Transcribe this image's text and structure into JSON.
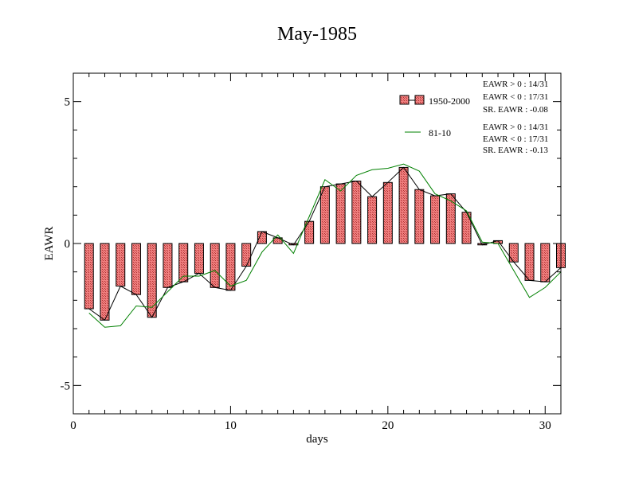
{
  "chart_data": {
    "type": "bar",
    "title": "May-1985",
    "xlabel": "days",
    "ylabel": "EAWR",
    "xlim": [
      0,
      31
    ],
    "ylim": [
      -6,
      6
    ],
    "xticks": [
      0,
      10,
      20,
      30
    ],
    "yticks": [
      -5,
      0,
      5
    ],
    "grid": false,
    "colors": {
      "bar_fill": "#f08080",
      "bar_hatch": "#b03030",
      "line_1950": "#000000",
      "line_8110": "#008000"
    },
    "x": [
      1,
      2,
      3,
      4,
      5,
      6,
      7,
      8,
      9,
      10,
      11,
      12,
      13,
      14,
      15,
      16,
      17,
      18,
      19,
      20,
      21,
      22,
      23,
      24,
      25,
      26,
      27,
      28,
      29,
      30,
      31
    ],
    "series": [
      {
        "name": "1950-2000",
        "style": "bar-with-line",
        "values": [
          -2.3,
          -2.7,
          -1.5,
          -1.8,
          -2.6,
          -1.55,
          -1.35,
          -1.05,
          -1.55,
          -1.65,
          -0.8,
          0.42,
          0.2,
          -0.05,
          0.78,
          2.0,
          2.1,
          2.2,
          1.65,
          2.15,
          2.68,
          1.9,
          1.68,
          1.75,
          1.1,
          -0.05,
          0.1,
          -0.65,
          -1.3,
          -1.35,
          -0.85
        ]
      },
      {
        "name": "81-10",
        "style": "line",
        "values": [
          -2.45,
          -2.95,
          -2.9,
          -2.2,
          -2.25,
          -1.7,
          -1.15,
          -1.15,
          -0.95,
          -1.5,
          -1.3,
          -0.3,
          0.3,
          -0.35,
          0.95,
          2.25,
          1.85,
          2.4,
          2.6,
          2.65,
          2.8,
          2.55,
          1.75,
          1.5,
          1.15,
          0.05,
          0.0,
          -0.95,
          -1.9,
          -1.55,
          -1.0
        ]
      }
    ],
    "legend": [
      {
        "label": "1950-2000",
        "symbol": "bar"
      },
      {
        "label": "81-10",
        "symbol": "line"
      }
    ],
    "annotations": [
      [
        "EAWR > 0 : 14/31",
        "EAWR < 0 : 17/31",
        "SR. EAWR : -0.08"
      ],
      [
        "EAWR > 0 : 14/31",
        "EAWR < 0 : 17/31",
        "SR. EAWR : -0.13"
      ]
    ]
  }
}
